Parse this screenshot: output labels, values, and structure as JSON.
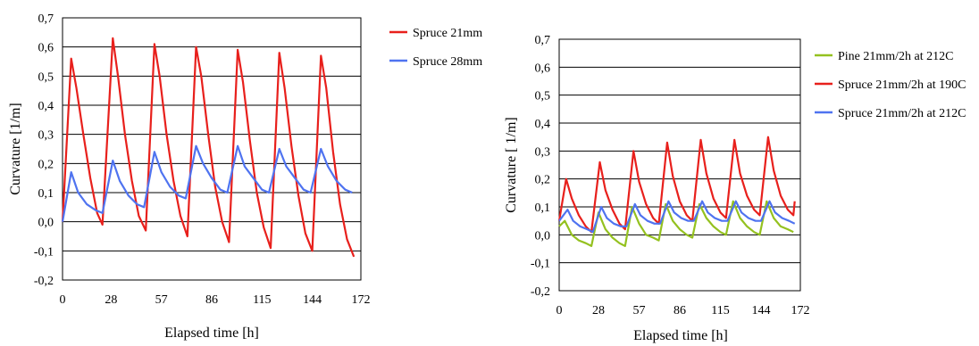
{
  "chart_data": [
    {
      "type": "line",
      "xlabel": "Elapsed time [h]",
      "ylabel": "Curvature [1/m]",
      "xlim": [
        0,
        172
      ],
      "ylim": [
        -0.2,
        0.7
      ],
      "xticks": [
        "0",
        "28",
        "57",
        "86",
        "115",
        "144",
        "172"
      ],
      "yticks": [
        "-0,2",
        "-0,1",
        "0,0",
        "0,1",
        "0,2",
        "0,3",
        "0,4",
        "0,5",
        "0,6",
        "0,7"
      ],
      "grid": "horizontal",
      "legend": "right",
      "series": [
        {
          "name": "Spruce 21mm",
          "color": "#e8201c",
          "x": [
            0,
            5,
            8,
            12,
            16,
            20,
            23,
            29,
            32,
            36,
            40,
            44,
            48,
            53,
            56,
            60,
            64,
            68,
            72,
            77,
            80,
            84,
            88,
            92,
            96,
            101,
            104,
            108,
            112,
            116,
            120,
            125,
            128,
            132,
            136,
            140,
            144,
            149,
            152,
            156,
            160,
            164,
            168
          ],
          "y": [
            0.0,
            0.56,
            0.46,
            0.3,
            0.15,
            0.03,
            -0.01,
            0.63,
            0.5,
            0.3,
            0.14,
            0.02,
            -0.03,
            0.61,
            0.5,
            0.3,
            0.14,
            0.02,
            -0.05,
            0.6,
            0.5,
            0.3,
            0.12,
            0.0,
            -0.07,
            0.59,
            0.48,
            0.28,
            0.1,
            -0.02,
            -0.09,
            0.58,
            0.46,
            0.26,
            0.09,
            -0.04,
            -0.1,
            0.57,
            0.46,
            0.24,
            0.06,
            -0.06,
            -0.12
          ]
        },
        {
          "name": "Spruce 28mm",
          "color": "#4f73f0",
          "x": [
            0,
            5,
            9,
            14,
            19,
            23,
            29,
            33,
            38,
            43,
            47,
            53,
            57,
            62,
            67,
            71,
            77,
            81,
            86,
            91,
            95,
            101,
            105,
            110,
            115,
            119,
            125,
            129,
            134,
            139,
            143,
            149,
            153,
            158,
            163,
            167
          ],
          "y": [
            0.0,
            0.17,
            0.1,
            0.06,
            0.04,
            0.03,
            0.21,
            0.14,
            0.09,
            0.06,
            0.05,
            0.24,
            0.17,
            0.12,
            0.09,
            0.08,
            0.26,
            0.2,
            0.15,
            0.11,
            0.1,
            0.26,
            0.19,
            0.15,
            0.11,
            0.1,
            0.25,
            0.19,
            0.15,
            0.11,
            0.1,
            0.25,
            0.19,
            0.14,
            0.11,
            0.1
          ]
        }
      ]
    },
    {
      "type": "line",
      "xlabel": "Elapsed time [h]",
      "ylabel": "Curvature [ 1/m]",
      "xlim": [
        0,
        172
      ],
      "ylim": [
        -0.2,
        0.7
      ],
      "xticks": [
        "0",
        "28",
        "57",
        "86",
        "115",
        "144",
        "172"
      ],
      "yticks": [
        "-0,2",
        "-0,1",
        "0,0",
        "0,1",
        "0,2",
        "0,3",
        "0,4",
        "0,5",
        "0,6",
        "0,7"
      ],
      "grid": "horizontal",
      "legend": "right",
      "series": [
        {
          "name": "Pine 21mm/2h at 212C",
          "color": "#94c11f",
          "x": [
            0,
            4,
            9,
            14,
            19,
            23,
            28,
            33,
            38,
            43,
            47,
            52,
            57,
            62,
            67,
            71,
            76,
            81,
            86,
            91,
            95,
            100,
            105,
            110,
            115,
            119,
            124,
            129,
            134,
            139,
            143,
            148,
            153,
            158,
            163,
            167
          ],
          "y": [
            0.03,
            0.05,
            0.0,
            -0.02,
            -0.03,
            -0.04,
            0.08,
            0.02,
            -0.01,
            -0.03,
            -0.04,
            0.1,
            0.04,
            0.0,
            -0.01,
            -0.02,
            0.11,
            0.05,
            0.02,
            0.0,
            -0.01,
            0.11,
            0.06,
            0.03,
            0.01,
            0.0,
            0.12,
            0.06,
            0.03,
            0.01,
            0.0,
            0.12,
            0.06,
            0.03,
            0.02,
            0.01
          ]
        },
        {
          "name": "Spruce 21mm/2h at 190C",
          "color": "#e8201c",
          "x": [
            0,
            5,
            9,
            14,
            19,
            23,
            29,
            33,
            38,
            43,
            47,
            53,
            57,
            62,
            67,
            71,
            77,
            81,
            86,
            91,
            95,
            101,
            105,
            110,
            115,
            119,
            125,
            129,
            134,
            139,
            143,
            149,
            153,
            158,
            163,
            167,
            168
          ],
          "y": [
            0.05,
            0.2,
            0.13,
            0.07,
            0.03,
            0.01,
            0.26,
            0.16,
            0.09,
            0.04,
            0.02,
            0.3,
            0.19,
            0.11,
            0.06,
            0.04,
            0.33,
            0.21,
            0.12,
            0.07,
            0.05,
            0.34,
            0.22,
            0.13,
            0.08,
            0.06,
            0.34,
            0.22,
            0.14,
            0.09,
            0.07,
            0.35,
            0.23,
            0.14,
            0.09,
            0.07,
            0.12
          ]
        },
        {
          "name": "Spruce 21mm/2h at 212C",
          "color": "#4f73f0",
          "x": [
            0,
            6,
            10,
            15,
            20,
            24,
            30,
            34,
            39,
            44,
            48,
            54,
            58,
            63,
            68,
            72,
            78,
            82,
            87,
            92,
            96,
            102,
            106,
            111,
            116,
            120,
            126,
            130,
            135,
            140,
            144,
            150,
            154,
            159,
            164,
            168
          ],
          "y": [
            0.05,
            0.09,
            0.05,
            0.03,
            0.02,
            0.01,
            0.1,
            0.06,
            0.04,
            0.03,
            0.03,
            0.11,
            0.07,
            0.05,
            0.04,
            0.04,
            0.12,
            0.08,
            0.06,
            0.05,
            0.05,
            0.12,
            0.08,
            0.06,
            0.05,
            0.05,
            0.12,
            0.08,
            0.06,
            0.05,
            0.05,
            0.12,
            0.08,
            0.06,
            0.05,
            0.04
          ]
        }
      ]
    }
  ]
}
